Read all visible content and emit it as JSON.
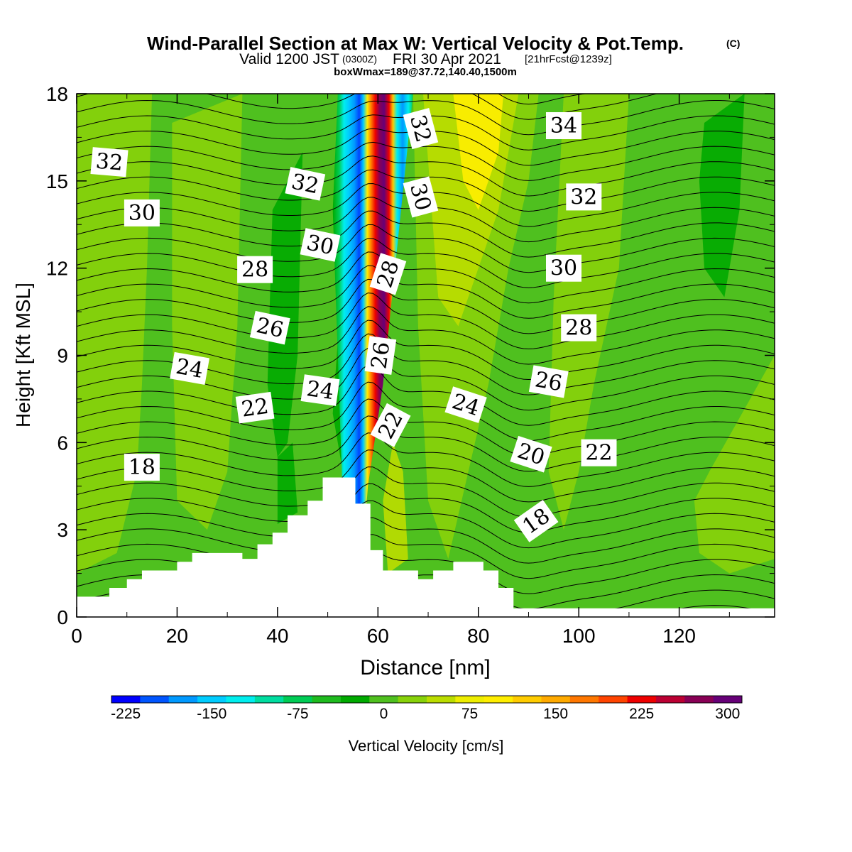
{
  "chart_data": {
    "type": "heatmap",
    "title": "Wind-Parallel Section at Max W: Vertical Velocity & Pot.Temp.",
    "title_suffix": "(C)",
    "subtitle_valid": "Valid 1200 JST",
    "subtitle_utc": "(0300Z)",
    "subtitle_date": "FRI 30 Apr 2021",
    "subtitle_fcst": "[21hrFcst@1239z]",
    "subtitle2": "boxWmax=189@37.72,140.40,1500m",
    "xlabel": "Distance [nm]",
    "ylabel": "Height [Kft MSL]",
    "xlim": [
      0,
      139
    ],
    "ylim": [
      0,
      18
    ],
    "x_ticks": [
      "0",
      "20",
      "40",
      "60",
      "80",
      "100",
      "120"
    ],
    "y_ticks": [
      "0",
      "3",
      "6",
      "9",
      "12",
      "15",
      "18"
    ],
    "colorbar": {
      "label": "Vertical Velocity [cm/s]",
      "tick_labels": [
        "-225",
        "-150",
        "-75",
        "0",
        "75",
        "150",
        "225",
        "300"
      ],
      "colors": [
        "#0000ff",
        "#0055ff",
        "#0099ff",
        "#00ccff",
        "#00eeee",
        "#00dda0",
        "#00cc55",
        "#1fbb1f",
        "#00aa00",
        "#4fc01f",
        "#88d20a",
        "#bbdd00",
        "#eeee00",
        "#ffee00",
        "#ffcc00",
        "#ffaa00",
        "#ff7700",
        "#ff4400",
        "#ee0000",
        "#bb0033",
        "#880055",
        "#660077"
      ]
    },
    "theta_labels": [
      {
        "v": "32",
        "x": 6.5,
        "y": 15.65,
        "r": 5
      },
      {
        "v": "30",
        "x": 13,
        "y": 13.9,
        "r": 0
      },
      {
        "v": "28",
        "x": 35.5,
        "y": 11.95,
        "r": 0
      },
      {
        "v": "26",
        "x": 38.5,
        "y": 9.95,
        "r": 12
      },
      {
        "v": "24",
        "x": 22.5,
        "y": 8.55,
        "r": 10
      },
      {
        "v": "22",
        "x": 35.5,
        "y": 7.2,
        "r": -8
      },
      {
        "v": "18",
        "x": 13,
        "y": 5.15,
        "r": 0
      },
      {
        "v": "32",
        "x": 45.5,
        "y": 14.9,
        "r": 12
      },
      {
        "v": "30",
        "x": 48.5,
        "y": 12.8,
        "r": 12
      },
      {
        "v": "24",
        "x": 48.5,
        "y": 7.8,
        "r": 8
      },
      {
        "v": "32",
        "x": 68.5,
        "y": 16.8,
        "r": 75
      },
      {
        "v": "30",
        "x": 68.5,
        "y": 14.45,
        "r": 75
      },
      {
        "v": "28",
        "x": 62,
        "y": 11.8,
        "r": -72
      },
      {
        "v": "26",
        "x": 60.5,
        "y": 9.0,
        "r": -82
      },
      {
        "v": "22",
        "x": 62.5,
        "y": 6.6,
        "r": -62
      },
      {
        "v": "34",
        "x": 97,
        "y": 16.9,
        "r": 0
      },
      {
        "v": "32",
        "x": 101,
        "y": 14.45,
        "r": 0
      },
      {
        "v": "30",
        "x": 97,
        "y": 12.0,
        "r": 0
      },
      {
        "v": "28",
        "x": 100,
        "y": 9.95,
        "r": 0
      },
      {
        "v": "26",
        "x": 94,
        "y": 8.1,
        "r": 10
      },
      {
        "v": "24",
        "x": 77.5,
        "y": 7.3,
        "r": 18
      },
      {
        "v": "20",
        "x": 90.5,
        "y": 5.6,
        "r": 18
      },
      {
        "v": "22",
        "x": 104,
        "y": 5.65,
        "r": 0
      },
      {
        "v": "18",
        "x": 91.5,
        "y": 3.3,
        "r": -35
      }
    ]
  }
}
